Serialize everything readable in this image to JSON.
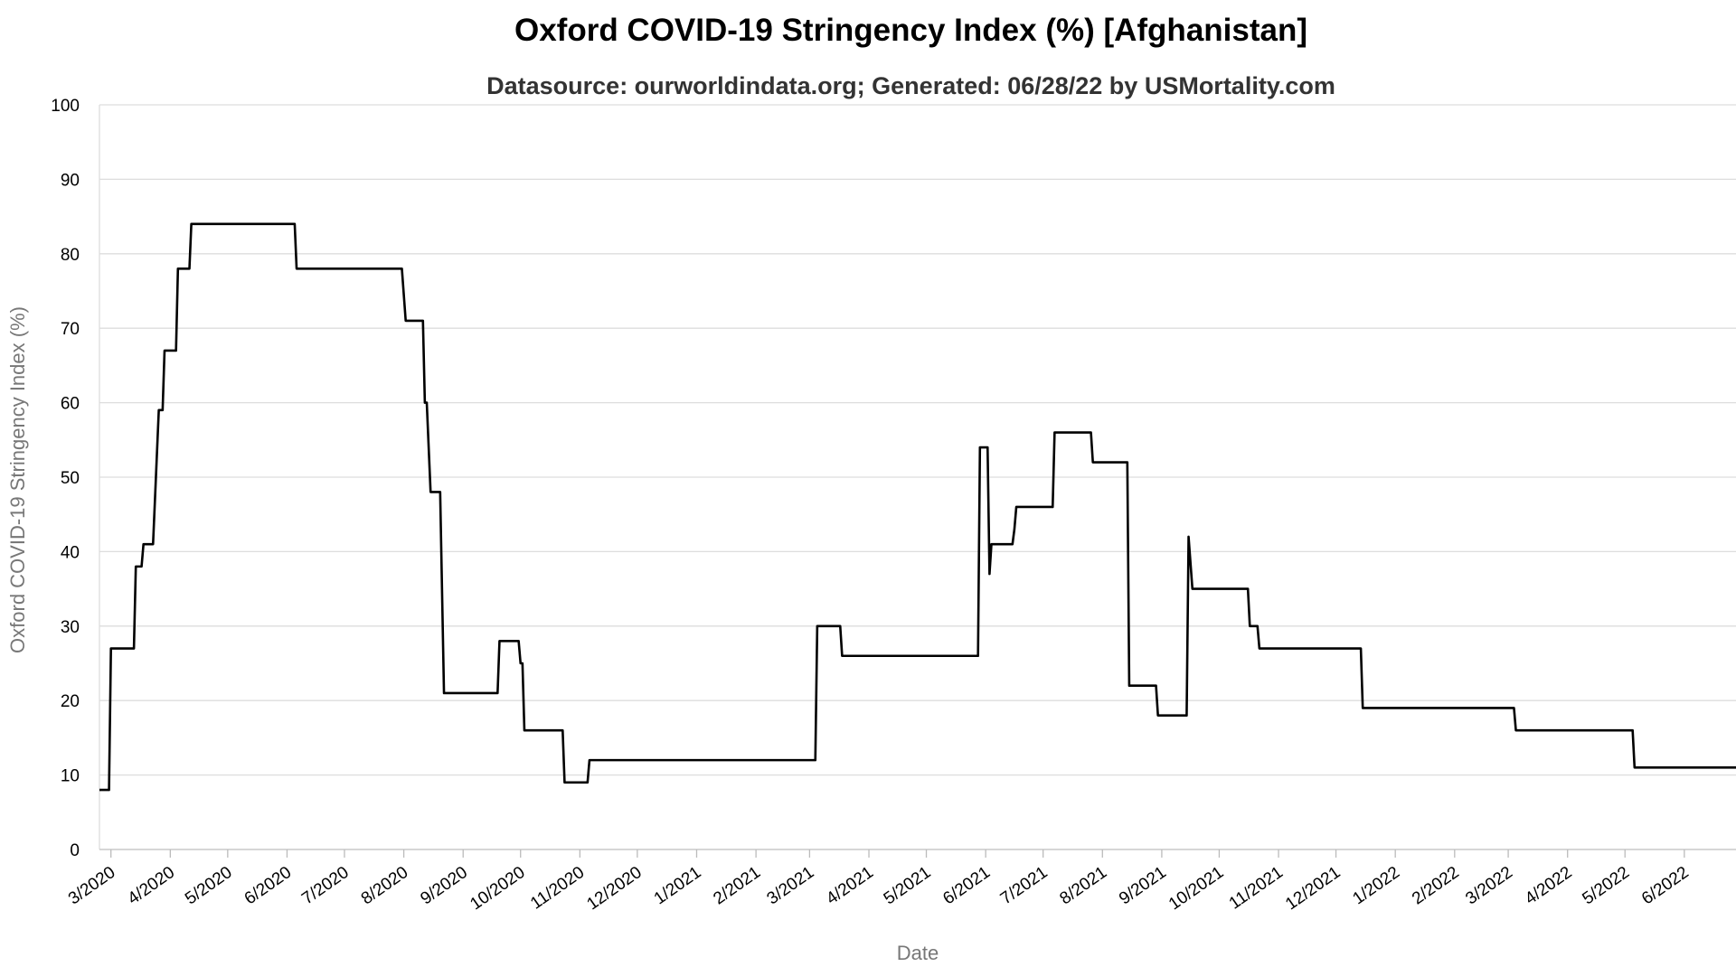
{
  "chart_data": {
    "type": "line",
    "title": "Oxford COVID-19 Stringency Index (%) [Afghanistan]",
    "subtitle": "Datasource: ourworldindata.org; Generated: 06/28/22 by USMortality.com",
    "xlabel": "Date",
    "ylabel": "Oxford COVID-19 Stringency Index (%)",
    "ylim": [
      0,
      100
    ],
    "yticks": [
      0,
      10,
      20,
      30,
      40,
      50,
      60,
      70,
      80,
      90,
      100
    ],
    "xlim": [
      "2020-02-24",
      "2022-06-28"
    ],
    "xticks": [
      {
        "date": "2020-03-01",
        "label": "3/2020"
      },
      {
        "date": "2020-04-01",
        "label": "4/2020"
      },
      {
        "date": "2020-05-01",
        "label": "5/2020"
      },
      {
        "date": "2020-06-01",
        "label": "6/2020"
      },
      {
        "date": "2020-07-01",
        "label": "7/2020"
      },
      {
        "date": "2020-08-01",
        "label": "8/2020"
      },
      {
        "date": "2020-09-01",
        "label": "9/2020"
      },
      {
        "date": "2020-10-01",
        "label": "10/2020"
      },
      {
        "date": "2020-11-01",
        "label": "11/2020"
      },
      {
        "date": "2020-12-01",
        "label": "12/2020"
      },
      {
        "date": "2021-01-01",
        "label": "1/2021"
      },
      {
        "date": "2021-02-01",
        "label": "2/2021"
      },
      {
        "date": "2021-03-01",
        "label": "3/2021"
      },
      {
        "date": "2021-04-01",
        "label": "4/2021"
      },
      {
        "date": "2021-05-01",
        "label": "5/2021"
      },
      {
        "date": "2021-06-01",
        "label": "6/2021"
      },
      {
        "date": "2021-07-01",
        "label": "7/2021"
      },
      {
        "date": "2021-08-01",
        "label": "8/2021"
      },
      {
        "date": "2021-09-01",
        "label": "9/2021"
      },
      {
        "date": "2021-10-01",
        "label": "10/2021"
      },
      {
        "date": "2021-11-01",
        "label": "11/2021"
      },
      {
        "date": "2021-12-01",
        "label": "12/2021"
      },
      {
        "date": "2022-01-01",
        "label": "1/2022"
      },
      {
        "date": "2022-02-01",
        "label": "2/2022"
      },
      {
        "date": "2022-03-01",
        "label": "3/2022"
      },
      {
        "date": "2022-04-01",
        "label": "4/2022"
      },
      {
        "date": "2022-05-01",
        "label": "5/2022"
      },
      {
        "date": "2022-06-01",
        "label": "6/2022"
      }
    ],
    "grid": true,
    "line_color": "#000000",
    "series": [
      {
        "name": "",
        "points": [
          [
            "2020-02-24",
            8
          ],
          [
            "2020-02-29",
            8
          ],
          [
            "2020-03-01",
            27
          ],
          [
            "2020-03-13",
            27
          ],
          [
            "2020-03-14",
            38
          ],
          [
            "2020-03-17",
            38
          ],
          [
            "2020-03-18",
            41
          ],
          [
            "2020-03-23",
            41
          ],
          [
            "2020-03-26",
            59
          ],
          [
            "2020-03-28",
            59
          ],
          [
            "2020-03-29",
            67
          ],
          [
            "2020-04-04",
            67
          ],
          [
            "2020-04-05",
            78
          ],
          [
            "2020-04-11",
            78
          ],
          [
            "2020-04-12",
            84
          ],
          [
            "2020-06-05",
            84
          ],
          [
            "2020-06-06",
            78
          ],
          [
            "2020-07-31",
            78
          ],
          [
            "2020-08-02",
            71
          ],
          [
            "2020-08-11",
            71
          ],
          [
            "2020-08-12",
            60
          ],
          [
            "2020-08-13",
            60
          ],
          [
            "2020-08-15",
            48
          ],
          [
            "2020-08-20",
            48
          ],
          [
            "2020-08-22",
            21
          ],
          [
            "2020-09-19",
            21
          ],
          [
            "2020-09-20",
            28
          ],
          [
            "2020-09-30",
            28
          ],
          [
            "2020-10-01",
            25
          ],
          [
            "2020-10-02",
            25
          ],
          [
            "2020-10-03",
            16
          ],
          [
            "2020-10-23",
            16
          ],
          [
            "2020-10-24",
            9
          ],
          [
            "2020-11-05",
            9
          ],
          [
            "2020-11-06",
            12
          ],
          [
            "2021-03-04",
            12
          ],
          [
            "2021-03-05",
            30
          ],
          [
            "2021-03-17",
            30
          ],
          [
            "2021-03-18",
            26
          ],
          [
            "2021-05-28",
            26
          ],
          [
            "2021-05-29",
            54
          ],
          [
            "2021-06-02",
            54
          ],
          [
            "2021-06-03",
            37
          ],
          [
            "2021-06-04",
            41
          ],
          [
            "2021-06-15",
            41
          ],
          [
            "2021-06-16",
            43
          ],
          [
            "2021-06-17",
            46
          ],
          [
            "2021-07-06",
            46
          ],
          [
            "2021-07-07",
            56
          ],
          [
            "2021-07-26",
            56
          ],
          [
            "2021-07-27",
            52
          ],
          [
            "2021-08-14",
            52
          ],
          [
            "2021-08-15",
            22
          ],
          [
            "2021-08-29",
            22
          ],
          [
            "2021-08-30",
            18
          ],
          [
            "2021-09-14",
            18
          ],
          [
            "2021-09-15",
            42
          ],
          [
            "2021-09-17",
            35
          ],
          [
            "2021-10-16",
            35
          ],
          [
            "2021-10-17",
            30
          ],
          [
            "2021-10-21",
            30
          ],
          [
            "2021-10-22",
            27
          ],
          [
            "2021-12-14",
            27
          ],
          [
            "2021-12-15",
            19
          ],
          [
            "2022-03-04",
            19
          ],
          [
            "2022-03-05",
            16
          ],
          [
            "2022-05-05",
            16
          ],
          [
            "2022-05-06",
            11
          ],
          [
            "2022-06-28",
            11
          ]
        ]
      }
    ]
  }
}
